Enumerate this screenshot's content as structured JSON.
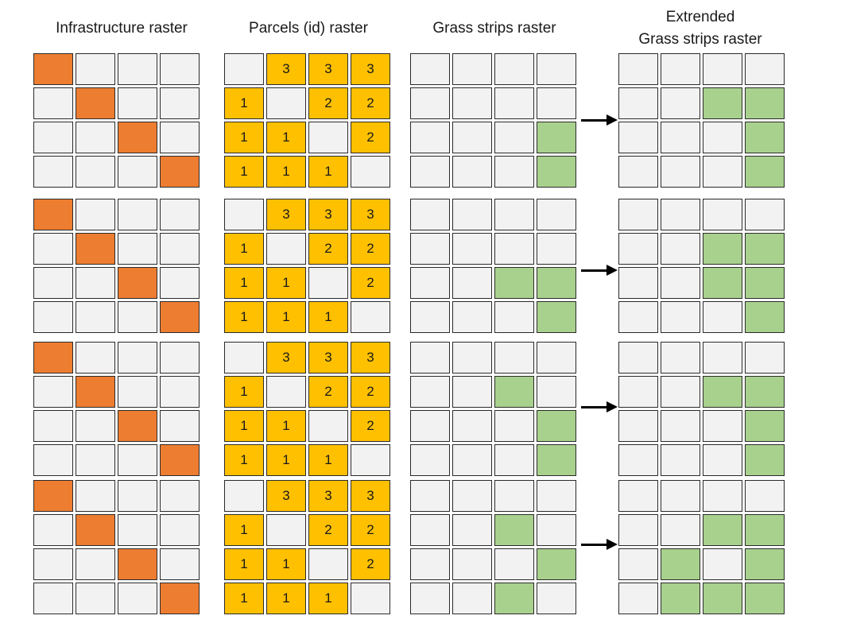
{
  "titles": {
    "infrastructure": "Infrastructure raster",
    "parcels": "Parcels (id) raster",
    "grass": "Grass strips raster",
    "extended_line1": "Extrended",
    "extended_line2": "Grass strips raster"
  },
  "colors": {
    "empty": "#f2f2f2",
    "infrastructure": "#ed7d31",
    "parcel": "#ffc000",
    "grass": "#a9d18e",
    "border": "#2a2a2a",
    "arrow": "#000000"
  },
  "legend_codes": {
    "e": "empty cell",
    "i": "infrastructure cell",
    "g": "grass strip cell"
  },
  "infrastructure_rows": [
    [
      "i",
      "e",
      "e",
      "e"
    ],
    [
      "e",
      "i",
      "e",
      "e"
    ],
    [
      "e",
      "e",
      "i",
      "e"
    ],
    [
      "e",
      "e",
      "e",
      "i"
    ]
  ],
  "parcel_rows": [
    [
      "",
      "3",
      "3",
      "3"
    ],
    [
      "1",
      "",
      "2",
      "2"
    ],
    [
      "1",
      "1",
      "",
      "2"
    ],
    [
      "1",
      "1",
      "1",
      ""
    ]
  ],
  "grass_examples": [
    [
      [
        "e",
        "e",
        "e",
        "e"
      ],
      [
        "e",
        "e",
        "e",
        "e"
      ],
      [
        "e",
        "e",
        "e",
        "g"
      ],
      [
        "e",
        "e",
        "e",
        "g"
      ]
    ],
    [
      [
        "e",
        "e",
        "e",
        "e"
      ],
      [
        "e",
        "e",
        "e",
        "e"
      ],
      [
        "e",
        "e",
        "g",
        "g"
      ],
      [
        "e",
        "e",
        "e",
        "g"
      ]
    ],
    [
      [
        "e",
        "e",
        "e",
        "e"
      ],
      [
        "e",
        "e",
        "g",
        "e"
      ],
      [
        "e",
        "e",
        "e",
        "g"
      ],
      [
        "e",
        "e",
        "e",
        "g"
      ]
    ],
    [
      [
        "e",
        "e",
        "e",
        "e"
      ],
      [
        "e",
        "e",
        "g",
        "e"
      ],
      [
        "e",
        "e",
        "e",
        "g"
      ],
      [
        "e",
        "e",
        "g",
        "e"
      ]
    ]
  ],
  "extended_examples": [
    [
      [
        "e",
        "e",
        "e",
        "e"
      ],
      [
        "e",
        "e",
        "g",
        "g"
      ],
      [
        "e",
        "e",
        "e",
        "g"
      ],
      [
        "e",
        "e",
        "e",
        "g"
      ]
    ],
    [
      [
        "e",
        "e",
        "e",
        "e"
      ],
      [
        "e",
        "e",
        "g",
        "g"
      ],
      [
        "e",
        "e",
        "g",
        "g"
      ],
      [
        "e",
        "e",
        "e",
        "g"
      ]
    ],
    [
      [
        "e",
        "e",
        "e",
        "e"
      ],
      [
        "e",
        "e",
        "g",
        "g"
      ],
      [
        "e",
        "e",
        "e",
        "g"
      ],
      [
        "e",
        "e",
        "e",
        "g"
      ]
    ],
    [
      [
        "e",
        "e",
        "e",
        "e"
      ],
      [
        "e",
        "e",
        "g",
        "g"
      ],
      [
        "e",
        "g",
        "e",
        "g"
      ],
      [
        "e",
        "g",
        "g",
        "g"
      ]
    ]
  ]
}
